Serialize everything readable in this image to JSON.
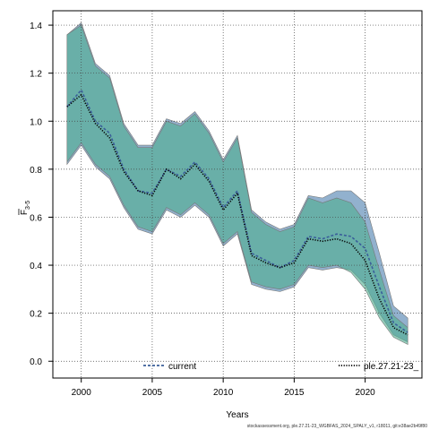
{
  "chart_data": {
    "type": "line",
    "xlabel": "Years",
    "ylabel_main": "F",
    "ylabel_sub": "3-5",
    "xlim": [
      1998,
      2024
    ],
    "ylim": [
      -0.07,
      1.46
    ],
    "xticks": [
      2000,
      2005,
      2010,
      2015,
      2020
    ],
    "yticks": [
      0.0,
      0.2,
      0.4,
      0.6,
      0.8,
      1.0,
      1.2,
      1.4
    ],
    "ytick_labels": [
      "0.0",
      "0.2",
      "0.4",
      "0.6",
      "0.8",
      "1.0",
      "1.2",
      "1.4"
    ],
    "grid": true,
    "legend_placement": "bottom",
    "x": [
      1999,
      2000,
      2001,
      2002,
      2003,
      2004,
      2005,
      2006,
      2007,
      2008,
      2009,
      2010,
      2011,
      2012,
      2013,
      2014,
      2015,
      2016,
      2017,
      2018,
      2019,
      2020,
      2021,
      2022,
      2023
    ],
    "series": [
      {
        "name": "current",
        "color": "#3a5f9a",
        "band_color": "#7fa3c6",
        "line_style": "dashed",
        "values": [
          1.06,
          1.13,
          1.0,
          0.95,
          0.8,
          0.71,
          0.7,
          0.8,
          0.77,
          0.83,
          0.76,
          0.64,
          0.71,
          0.45,
          0.42,
          0.39,
          0.42,
          0.52,
          0.51,
          0.53,
          0.52,
          0.47,
          0.31,
          0.16,
          0.12
        ],
        "lower": [
          0.82,
          0.9,
          0.81,
          0.76,
          0.64,
          0.55,
          0.53,
          0.63,
          0.6,
          0.65,
          0.6,
          0.48,
          0.53,
          0.32,
          0.3,
          0.29,
          0.31,
          0.39,
          0.38,
          0.39,
          0.38,
          0.32,
          0.2,
          0.11,
          0.08
        ],
        "upper": [
          1.36,
          1.41,
          1.24,
          1.19,
          0.99,
          0.9,
          0.9,
          1.01,
          0.99,
          1.04,
          0.96,
          0.84,
          0.94,
          0.63,
          0.58,
          0.55,
          0.57,
          0.69,
          0.68,
          0.71,
          0.71,
          0.66,
          0.45,
          0.23,
          0.18
        ]
      },
      {
        "name": "ple.27.21-23_",
        "color": "#000000",
        "band_color": "#4fae8f",
        "line_style": "dotted",
        "values": [
          1.06,
          1.11,
          0.99,
          0.93,
          0.79,
          0.71,
          0.69,
          0.8,
          0.76,
          0.82,
          0.75,
          0.63,
          0.7,
          0.44,
          0.41,
          0.39,
          0.41,
          0.51,
          0.5,
          0.51,
          0.49,
          0.42,
          0.26,
          0.14,
          0.11
        ],
        "lower": [
          0.83,
          0.91,
          0.82,
          0.77,
          0.65,
          0.56,
          0.54,
          0.64,
          0.61,
          0.66,
          0.61,
          0.49,
          0.54,
          0.33,
          0.31,
          0.3,
          0.32,
          0.4,
          0.39,
          0.4,
          0.37,
          0.3,
          0.18,
          0.1,
          0.07
        ],
        "upper": [
          1.36,
          1.4,
          1.23,
          1.18,
          0.98,
          0.89,
          0.89,
          1.0,
          0.98,
          1.03,
          0.95,
          0.83,
          0.93,
          0.62,
          0.57,
          0.54,
          0.56,
          0.68,
          0.66,
          0.68,
          0.66,
          0.58,
          0.38,
          0.19,
          0.14
        ]
      }
    ],
    "footer": "stockassessment.org, ple.27.21-23_WGBFAS_2024_SPALY_v1, r18011, git:e38ae2b49f80"
  }
}
